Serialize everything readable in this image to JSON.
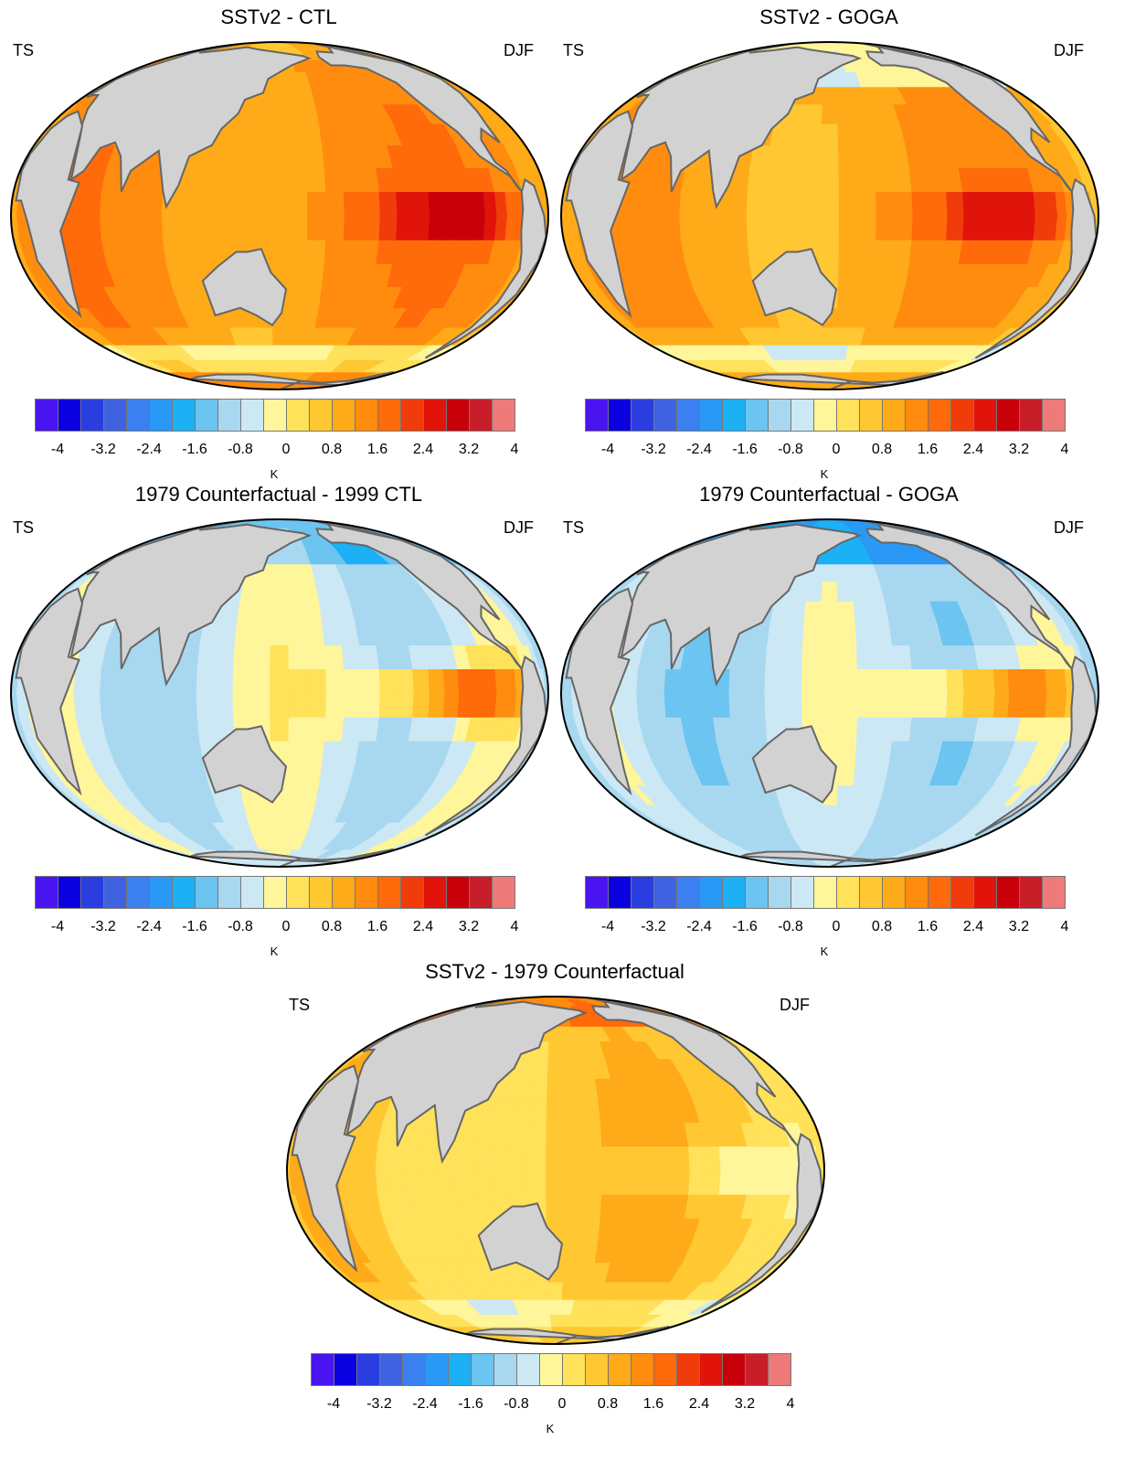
{
  "panels": [
    {
      "title": "SSTv2 - CTL",
      "variable": "TS",
      "season": "DJF",
      "pattern": "warm"
    },
    {
      "title": "SSTv2 - GOGA",
      "variable": "TS",
      "season": "DJF",
      "pattern": "warm-cool-north"
    },
    {
      "title": "1979 Counterfactual - 1999 CTL",
      "variable": "TS",
      "season": "DJF",
      "pattern": "enso"
    },
    {
      "title": "1979 Counterfactual - GOGA",
      "variable": "TS",
      "season": "DJF",
      "pattern": "enso-cool"
    },
    {
      "title": "SSTv2 - 1979 Counterfactual",
      "variable": "TS",
      "season": "DJF",
      "pattern": "mild"
    }
  ],
  "colorbar": {
    "unit": "K",
    "tick_labels": [
      "-4",
      "-3.2",
      "-2.4",
      "-1.6",
      "-0.8",
      "0",
      "0.8",
      "1.6",
      "2.4",
      "3.2",
      "4"
    ],
    "colors": [
      "#4a14f0",
      "#0a00e0",
      "#2a3ee0",
      "#3f63e0",
      "#3b80f0",
      "#2a98f5",
      "#1cb0f5",
      "#6cc4f0",
      "#a8d8f0",
      "#cce8f5",
      "#fff59a",
      "#ffe15a",
      "#ffc832",
      "#ffaa18",
      "#ff8c0e",
      "#ff6a0a",
      "#f03c0a",
      "#e0140a",
      "#c8000a",
      "#c81e2a",
      "#ee7a7a"
    ]
  },
  "colors": {
    "land": "#d2d2d2",
    "coast": "#666666",
    "frame": "#000000"
  }
}
